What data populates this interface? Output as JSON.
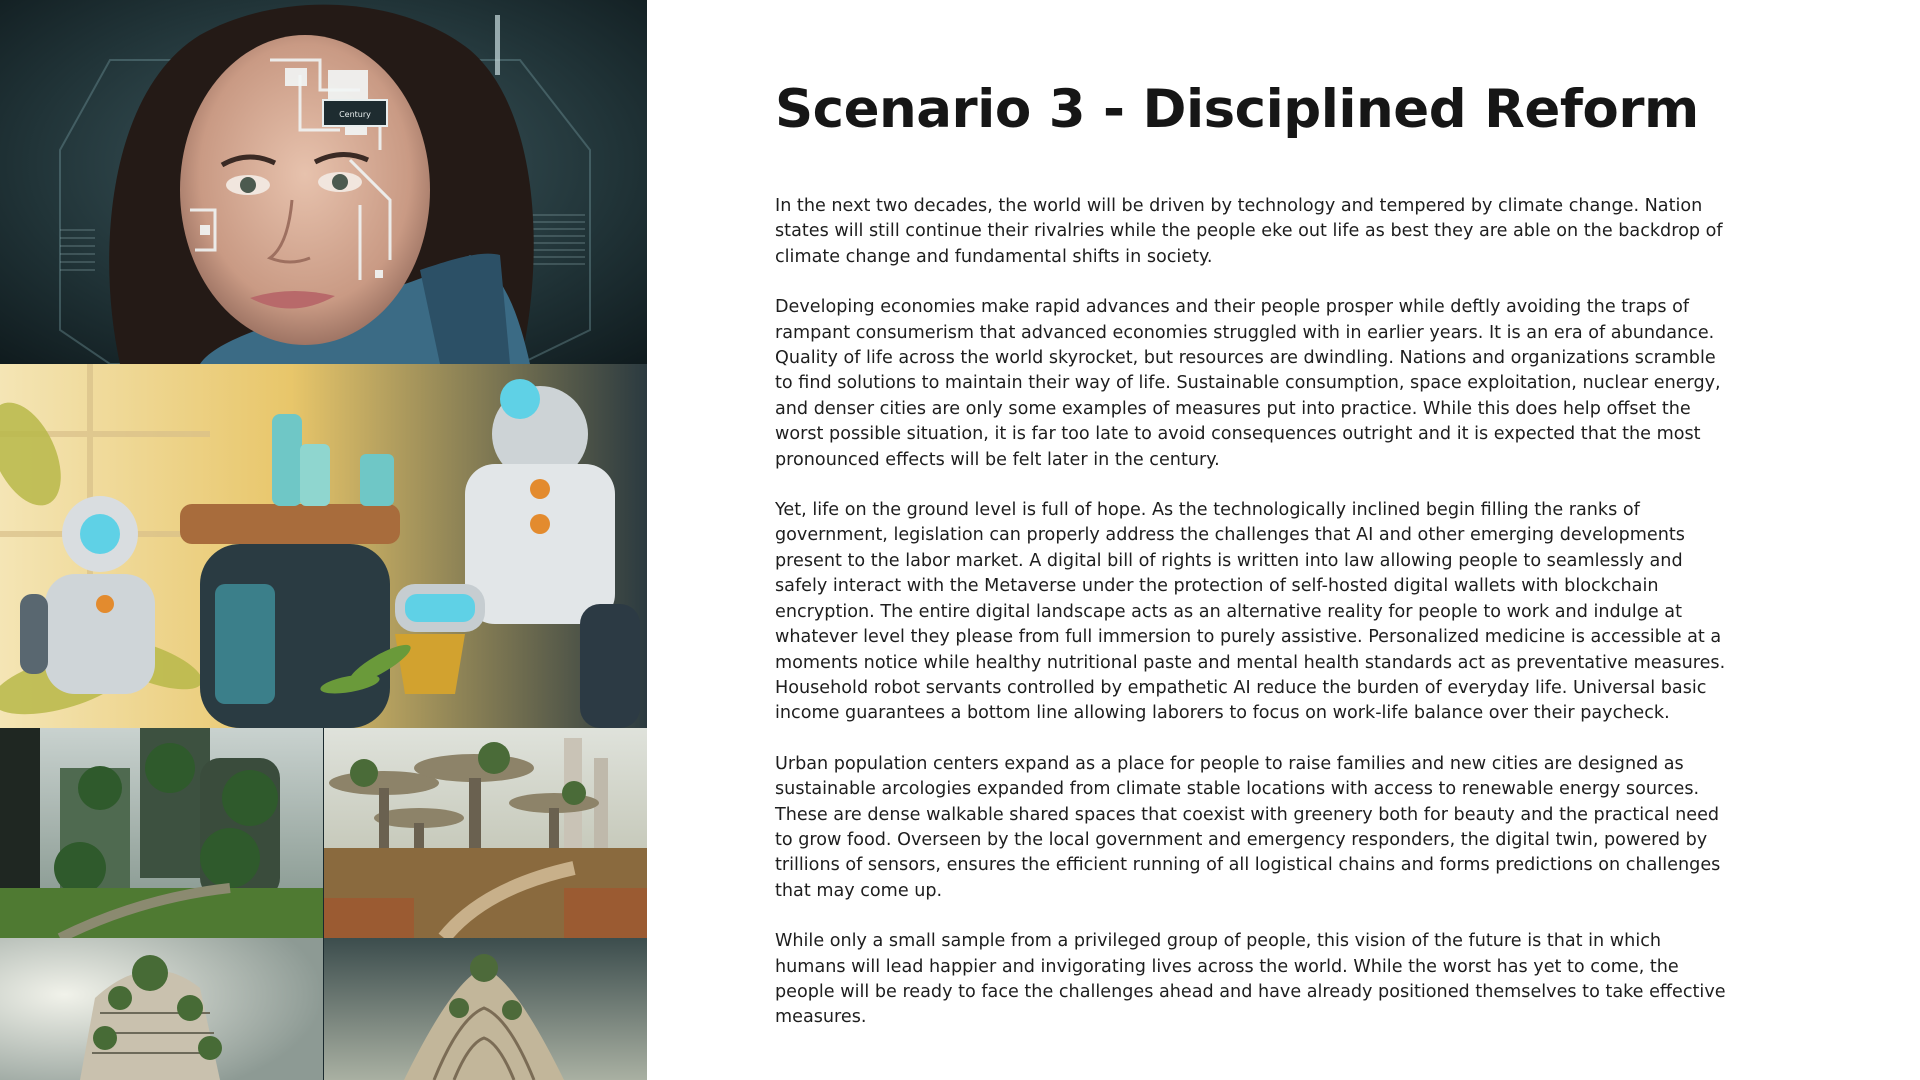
{
  "slide": {
    "title": "Scenario 3 - Disciplined Reform",
    "paragraphs": [
      "In the next two decades, the world will be driven by technology and tempered by climate change. Nation states will still continue their rivalries while the people eke out life as best they are able on the backdrop of climate change and fundamental shifts in society.",
      "Developing economies make rapid advances and their people prosper while deftly avoiding the traps of rampant consumerism that advanced economies struggled with in earlier years. It is an era of abundance. Quality of life across the world skyrocket, but resources are dwindling. Nations and organizations scramble to find solutions to maintain their way of life. Sustainable consumption, space exploitation, nuclear energy, and denser cities are only some examples of measures put into practice. While this does help offset the worst possible situation, it is far too late to avoid consequences outright and it is expected that the most pronounced effects will be felt later in the century.",
      "Yet, life on the ground level is full of hope. As the technologically inclined begin filling the ranks of government, legislation can properly address the challenges that AI and other emerging developments present to the labor market. A digital bill of rights is written into law allowing people to seamlessly and safely interact with the Metaverse under the protection of self-hosted digital wallets with blockchain encryption. The entire digital landscape acts as an alternative reality for people to work and indulge at whatever level they please from full immersion to purely assistive. Personalized medicine is accessible at a moments notice while healthy nutritional paste and mental health standards act as preventative measures. Household robot servants controlled by empathetic AI reduce the burden of everyday life. Universal basic income guarantees a bottom line allowing laborers to focus on work-life balance over their paycheck.",
      "Urban population centers expand as a place for people to raise families and new cities are designed as sustainable arcologies expanded from climate stable locations with access to renewable energy sources. These are dense walkable shared spaces that coexist with greenery both for beauty and the practical need to grow food. Overseen by the local government and emergency responders, the digital twin, powered by trillions of sensors, ensures the efficient running of all logistical chains and forms predictions on challenges that may come up.",
      "While only a small sample from a privileged group of people, this vision of the future is that in which humans will lead happier and invigorating lives across the world. While the worst has yet to come, the people will be ready to face the challenges ahead and have already positioned themselves to take effective measures."
    ]
  },
  "images": {
    "portrait_label": "Century"
  },
  "colors": {
    "title": "#161616",
    "body_text": "#1e1e1e",
    "background": "#ffffff"
  }
}
